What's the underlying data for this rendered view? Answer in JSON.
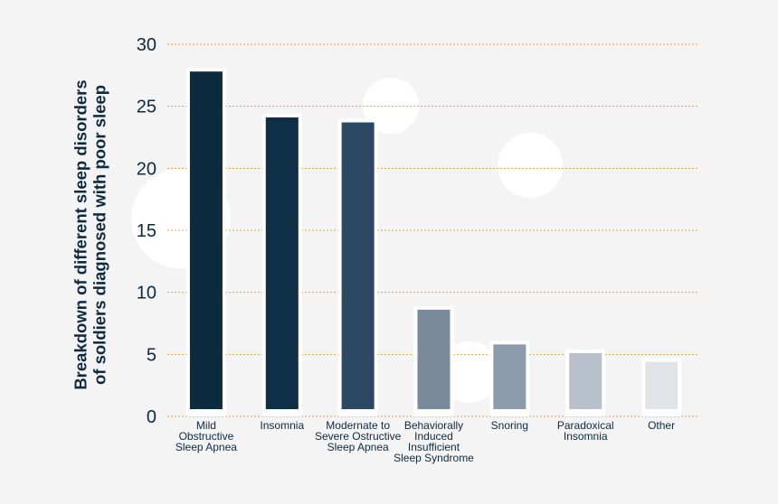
{
  "chart_data": {
    "type": "bar",
    "ylabel": "Breakdown of different sleep disorders of soldiers diagnosed with poor sleep",
    "ylim": [
      0,
      30
    ],
    "yticks": [
      0,
      5,
      10,
      15,
      20,
      25,
      30
    ],
    "grid": true,
    "categories": [
      "Mild Obstructive Sleep Apnea",
      "Insomnia",
      "Modernate to Severe Ostructive Sleep Apnea",
      "Behaviorally Induced Insufficient Sleep Syndrome",
      "Snoring",
      "Paradoxical Insomnia",
      "Other"
    ],
    "category_lines": [
      [
        "Mild",
        "Obstructive",
        "Sleep Apnea"
      ],
      [
        "Insomnia"
      ],
      [
        "Modernate to",
        "Severe Ostructive",
        "Sleep Apnea"
      ],
      [
        "Behaviorally",
        "Induced",
        "Insufficient",
        "Sleep Syndrome"
      ],
      [
        "Snoring"
      ],
      [
        "Paradoxical",
        "Insomnia"
      ],
      [
        "Other"
      ]
    ],
    "values": [
      27.8,
      24.1,
      23.7,
      8.6,
      5.8,
      5.1,
      4.4
    ],
    "bar_colors": [
      "#0d2a3f",
      "#0f2f45",
      "#2c4862",
      "#7a8a9d",
      "#8d9cac",
      "#b7c0cb",
      "#e0e3e8"
    ],
    "grid_color": "#e8a33d",
    "text_color": "#0d2a3f"
  }
}
